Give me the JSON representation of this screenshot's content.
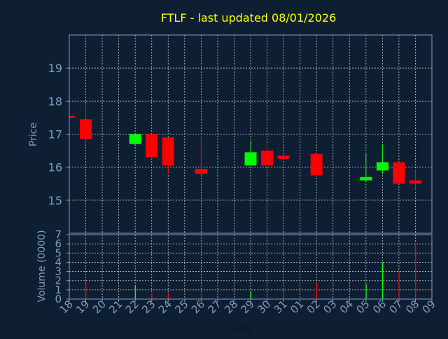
{
  "chart_data": [
    {
      "type": "candlestick",
      "title": "FTLF - last updated 08/01/2026",
      "ylabel": "Price",
      "xlabel": "",
      "ylim": [
        14,
        20
      ],
      "y_ticks": [
        15,
        16,
        17,
        18,
        19
      ],
      "grid": true,
      "x_tick_labels": [
        "18",
        "19",
        "20",
        "21",
        "22",
        "23",
        "24",
        "25",
        "26",
        "27",
        "28",
        "29",
        "30",
        "31",
        "01",
        "02",
        "03",
        "04",
        "05",
        "06",
        "07",
        "08",
        "09"
      ],
      "candles": [
        {
          "x": "18",
          "open": 17.55,
          "high": 17.55,
          "low": 17.45,
          "close": 17.5
        },
        {
          "x": "19",
          "open": 17.45,
          "high": 17.9,
          "low": 16.75,
          "close": 16.85
        },
        {
          "x": "22",
          "open": 16.7,
          "high": 17.0,
          "low": 16.65,
          "close": 17.0
        },
        {
          "x": "23",
          "open": 17.0,
          "high": 17.0,
          "low": 16.25,
          "close": 16.3
        },
        {
          "x": "24",
          "open": 16.9,
          "high": 16.9,
          "low": 15.8,
          "close": 16.05
        },
        {
          "x": "26",
          "open": 15.95,
          "high": 16.95,
          "low": 15.75,
          "close": 15.8
        },
        {
          "x": "29",
          "open": 16.05,
          "high": 16.8,
          "low": 16.05,
          "close": 16.45
        },
        {
          "x": "30",
          "open": 16.5,
          "high": 16.7,
          "low": 16.05,
          "close": 16.05
        },
        {
          "x": "31",
          "open": 16.35,
          "high": 16.4,
          "low": 16.2,
          "close": 16.25
        },
        {
          "x": "02",
          "open": 16.4,
          "high": 16.4,
          "low": 15.7,
          "close": 15.75
        },
        {
          "x": "05",
          "open": 15.6,
          "high": 16.4,
          "low": 15.55,
          "close": 15.7
        },
        {
          "x": "06",
          "open": 15.9,
          "high": 16.7,
          "low": 15.8,
          "close": 16.15
        },
        {
          "x": "07",
          "open": 16.15,
          "high": 16.15,
          "low": 15.5,
          "close": 15.5
        },
        {
          "x": "08",
          "open": 15.6,
          "high": 15.95,
          "low": 15.3,
          "close": 15.5
        }
      ],
      "colors": {
        "up": "#00ff00",
        "down": "#ff0000"
      }
    },
    {
      "type": "bar",
      "ylabel": "Volume (0000)",
      "xlabel": "Day",
      "ylim": [
        0,
        7
      ],
      "y_ticks": [
        0,
        1,
        2,
        3,
        4,
        5,
        6,
        7
      ],
      "categories": [
        "19",
        "22",
        "23",
        "24",
        "26",
        "29",
        "30",
        "31",
        "02",
        "05",
        "06",
        "07",
        "08"
      ],
      "values": [
        1.7,
        1.5,
        0.6,
        0.5,
        0.6,
        0.9,
        0.7,
        0.7,
        1.8,
        1.6,
        4.0,
        3.0,
        6.1
      ]
    }
  ],
  "colors": {
    "background": "#0f1f33",
    "title": "#ffff00",
    "axis_text": "#7e9bc2",
    "frame": "#7e9bc2",
    "grid": "#c8c8c8"
  }
}
